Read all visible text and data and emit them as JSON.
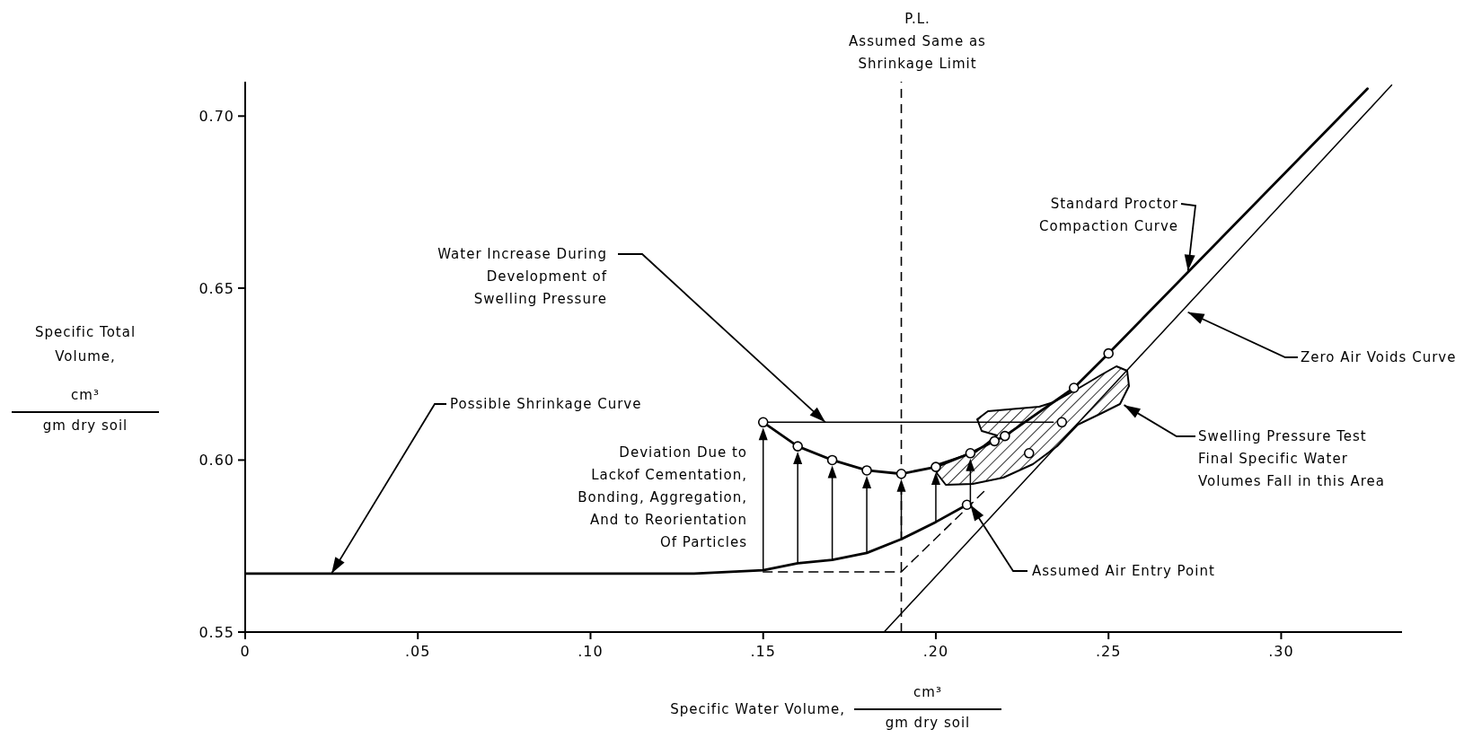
{
  "chart_data": {
    "type": "line",
    "xlabel": "Specific Water Volume,\ncm³\ngm dry soil",
    "ylabel": "Specific Total\nVolume,\ncm³\ngm dry soil",
    "xlim": [
      0,
      0.335
    ],
    "ylim": [
      0.55,
      0.71
    ],
    "xticks": [
      0,
      {
        "value": 0.05,
        "label": ".05"
      },
      {
        "value": 0.1,
        "label": ".10"
      },
      {
        "value": 0.15,
        "label": ".15"
      },
      {
        "value": 0.2,
        "label": ".20"
      },
      {
        "value": 0.25,
        "label": ".25"
      },
      {
        "value": 0.3,
        "label": ".30"
      }
    ],
    "yticks": [
      0.55,
      {
        "value": 0.6,
        "label": "0.60"
      },
      0.65,
      {
        "value": 0.7,
        "label": "0.70"
      }
    ],
    "grid": false,
    "series": [
      {
        "color": "#000000",
        "marker": "none",
        "line_style": "solid",
        "x": [
          0,
          0.13,
          0.15,
          0.16,
          0.17,
          0.18,
          0.19,
          0.2,
          0.209
        ],
        "values": [
          0.567,
          0.567,
          0.568,
          0.57,
          0.571,
          0.573,
          0.577,
          0.582,
          0.587
        ]
      },
      {
        "type": "scatter",
        "color": "#000000",
        "marker": "circle",
        "x": [
          0.209,
          0.2365,
          0.227
        ],
        "values": [
          0.587,
          0.611,
          0.602
        ]
      },
      {
        "color": "#000000",
        "marker": "circle",
        "line_style": "solid",
        "x": [
          0.15,
          0.16,
          0.17,
          0.18,
          0.19,
          0.2,
          0.21,
          0.217,
          0.22,
          0.24,
          0.25
        ],
        "values": [
          0.611,
          0.604,
          0.6,
          0.597,
          0.596,
          0.598,
          0.602,
          0.6055,
          0.607,
          0.621,
          0.631
        ]
      },
      {
        "color": "#000000",
        "marker": "none",
        "line_style": "solid",
        "x": [
          0.25,
          0.325
        ],
        "values": [
          0.631,
          0.708
        ]
      },
      {
        "color": "#000000",
        "marker": "none",
        "line_style": "solid",
        "x": [
          0.185,
          0.332
        ],
        "values": [
          0.55,
          0.709
        ]
      },
      {
        "color": "#000000",
        "marker": "none",
        "line_style": "dashed",
        "x": [
          0.15,
          0.19,
          0.2146
        ],
        "values": [
          0.5675,
          0.5675,
          0.5915
        ]
      },
      {
        "color": "#000000",
        "marker": "none",
        "line_style": "solid",
        "x": [
          0.15,
          0.234
        ],
        "values": [
          0.611,
          0.611
        ]
      }
    ],
    "ref_lines": [
      {
        "axis": "x",
        "value": 0.19,
        "label": "P.L.\nAssumed Same as\nShrinkage Limit",
        "line_style": "dashed"
      }
    ],
    "annotations": [
      {
        "text": "Water Increase During\nDevelopment of\nSwelling Pressure",
        "x": 0.168,
        "y": 0.611
      },
      {
        "text": "Possible Shrinkage Curve",
        "x": 0.025,
        "y": 0.567
      },
      "Deviation Due to\nLackof Cementation,\nBonding, Aggregation,\nAnd to Reorientation\nOf Particles",
      {
        "text": "Standard Proctor\nCompaction Curve",
        "x": 0.273,
        "y": 0.655
      },
      {
        "text": "Zero Air Voids Curve",
        "x": 0.273,
        "y": 0.643
      },
      "Swelling Pressure Test\nFinal Specific Water\nVolumes Fall in this Area",
      {
        "text": "Assumed Air Entry Point",
        "x": 0.21,
        "y": 0.587
      }
    ]
  }
}
